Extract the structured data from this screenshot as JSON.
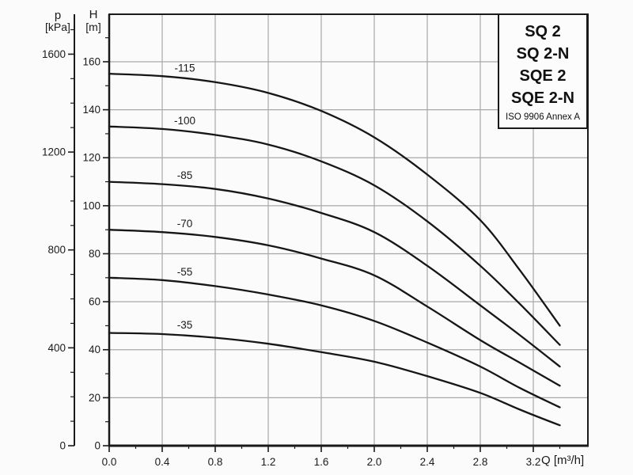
{
  "legend": {
    "models": [
      "SQ 2",
      "SQ 2-N",
      "SQE 2",
      "SQE 2-N"
    ],
    "note": "ISO 9906 Annex A"
  },
  "axes": {
    "pressure": {
      "symbol": "p",
      "unit": "[kPa]",
      "major_ticks": [
        0,
        400,
        800,
        1200,
        1600
      ],
      "minor_step": 100,
      "minor_max": 1700
    },
    "head": {
      "symbol": "H",
      "unit": "[m]",
      "major_ticks": [
        0,
        20,
        40,
        60,
        80,
        100,
        120,
        140,
        160
      ],
      "minor_step": 10,
      "minor_max": 170
    },
    "flow": {
      "label": "Q [m³/h]",
      "tick_labels": [
        "0.0",
        "0.4",
        "0.8",
        "1.2",
        "1.6",
        "2.0",
        "2.4",
        "2.8",
        "3.2"
      ],
      "minor_step": 0.2,
      "minor_max": 3.4
    }
  },
  "chart_data": {
    "type": "line",
    "xlabel": "Q [m³/h]",
    "ylabel": "H [m]",
    "y2label": "p [kPa]",
    "x_range": [
      0,
      3.61
    ],
    "y_range": [
      0,
      179.8
    ],
    "grid": {
      "x_step": 0.4,
      "y_step": 20
    },
    "legend_position": "top-right",
    "curve_label_q": 0.57,
    "series": [
      {
        "name": "-115",
        "points": [
          [
            0,
            155
          ],
          [
            0.4,
            154
          ],
          [
            0.8,
            151.5
          ],
          [
            1.2,
            147
          ],
          [
            1.6,
            139.5
          ],
          [
            2.0,
            128.5
          ],
          [
            2.4,
            113
          ],
          [
            2.8,
            94
          ],
          [
            3.1,
            73
          ],
          [
            3.4,
            50
          ]
        ]
      },
      {
        "name": "-100",
        "points": [
          [
            0,
            133
          ],
          [
            0.4,
            132
          ],
          [
            0.8,
            129.5
          ],
          [
            1.2,
            125.5
          ],
          [
            1.6,
            118.5
          ],
          [
            2.0,
            108.5
          ],
          [
            2.4,
            93.5
          ],
          [
            2.8,
            75
          ],
          [
            3.1,
            59
          ],
          [
            3.4,
            42
          ]
        ]
      },
      {
        "name": "-85",
        "points": [
          [
            0,
            110
          ],
          [
            0.4,
            109
          ],
          [
            0.8,
            107
          ],
          [
            1.2,
            103
          ],
          [
            1.6,
            97
          ],
          [
            2.0,
            89
          ],
          [
            2.4,
            75
          ],
          [
            2.8,
            58.5
          ],
          [
            3.1,
            46
          ],
          [
            3.4,
            33
          ]
        ]
      },
      {
        "name": "-70",
        "points": [
          [
            0,
            90
          ],
          [
            0.4,
            89
          ],
          [
            0.8,
            87
          ],
          [
            1.2,
            83.5
          ],
          [
            1.6,
            78
          ],
          [
            2.0,
            71
          ],
          [
            2.4,
            58
          ],
          [
            2.8,
            44
          ],
          [
            3.1,
            34.5
          ],
          [
            3.4,
            25
          ]
        ]
      },
      {
        "name": "-55",
        "points": [
          [
            0,
            70
          ],
          [
            0.4,
            69
          ],
          [
            0.8,
            66.5
          ],
          [
            1.2,
            63
          ],
          [
            1.6,
            58.5
          ],
          [
            2.0,
            52
          ],
          [
            2.4,
            43
          ],
          [
            2.8,
            33
          ],
          [
            3.1,
            24
          ],
          [
            3.4,
            16
          ]
        ]
      },
      {
        "name": "-35",
        "points": [
          [
            0,
            47
          ],
          [
            0.4,
            46.5
          ],
          [
            0.8,
            45
          ],
          [
            1.2,
            42.5
          ],
          [
            1.6,
            39
          ],
          [
            2.0,
            35
          ],
          [
            2.4,
            29
          ],
          [
            2.8,
            22
          ],
          [
            3.1,
            15
          ],
          [
            3.4,
            8.5
          ]
        ]
      }
    ]
  },
  "colors": {
    "curve": "#161616",
    "grid": "#a8a8a8",
    "axis": "#1a1a1a",
    "text": "#1a1a1a",
    "background": "#fbfbfb"
  }
}
